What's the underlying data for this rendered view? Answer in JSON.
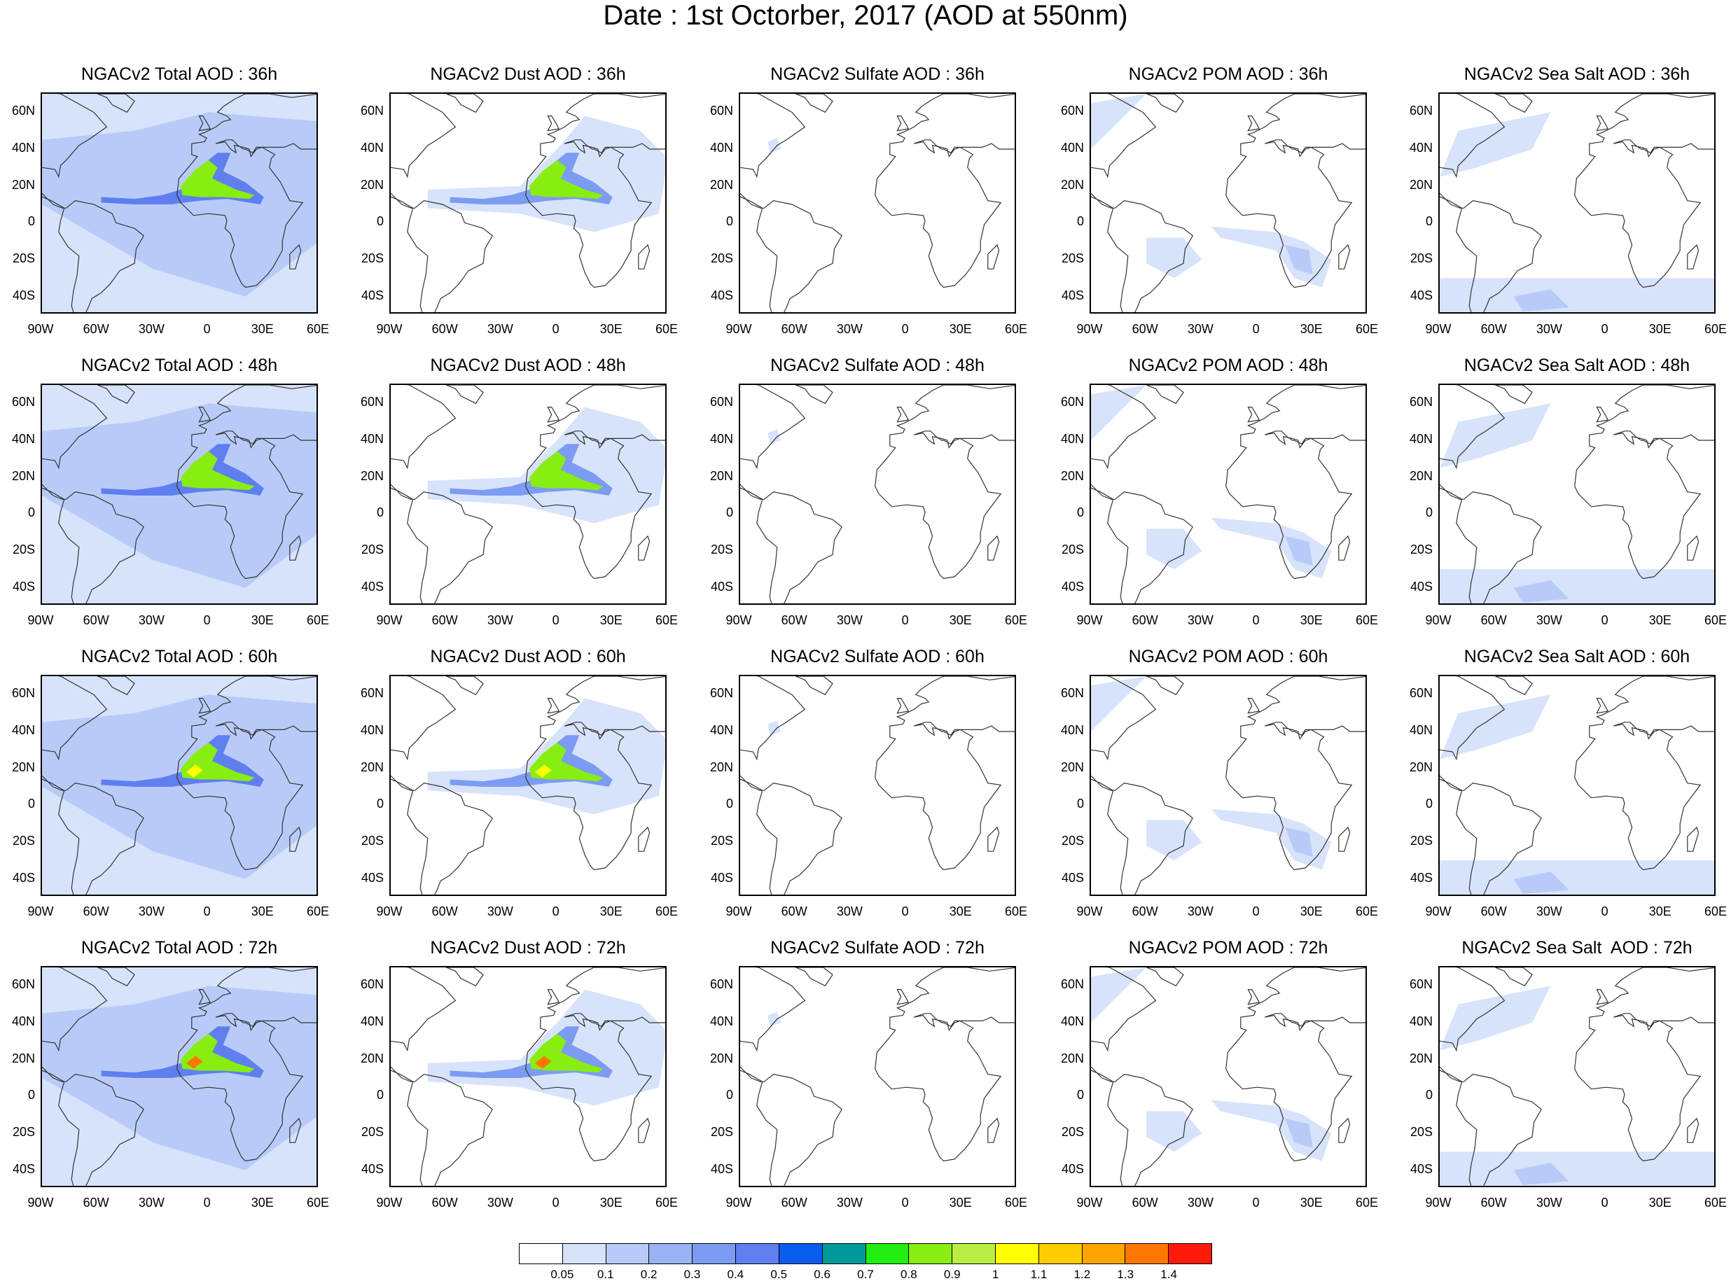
{
  "title": "Date : 1st Octorber, 2017 (AOD at 550nm)",
  "panels": [
    [
      "NGACv2 Total AOD : 36h",
      "NGACv2 Dust AOD : 36h",
      "NGACv2 Sulfate AOD : 36h",
      "NGACv2 POM AOD : 36h",
      "NGACv2 Sea Salt AOD : 36h"
    ],
    [
      "NGACv2 Total AOD : 48h",
      "NGACv2 Dust AOD : 48h",
      "NGACv2 Sulfate AOD : 48h",
      "NGACv2 POM AOD : 48h",
      "NGACv2 Sea Salt AOD : 48h"
    ],
    [
      "NGACv2 Total AOD : 60h",
      "NGACv2 Dust AOD : 60h",
      "NGACv2 Sulfate AOD : 60h",
      "NGACv2 POM AOD : 60h",
      "NGACv2 Sea Salt AOD : 60h"
    ],
    [
      "NGACv2 Total AOD : 72h",
      "NGACv2 Dust AOD : 72h",
      "NGACv2 Sulfate AOD : 72h",
      "NGACv2 POM AOD : 72h",
      "NGACv2 Sea Salt  AOD : 72h"
    ]
  ],
  "lat_labels": [
    "60N",
    "40N",
    "20N",
    "0",
    "20S",
    "40S"
  ],
  "lon_labels": [
    "90W",
    "60W",
    "30W",
    "0",
    "30E",
    "60E"
  ],
  "colorbar": {
    "colors": [
      "#ffffff",
      "#d7e3fb",
      "#b8cbf8",
      "#9ab3f5",
      "#7c9bf2",
      "#5f7ff0",
      "#0a5cee",
      "#009999",
      "#22ee11",
      "#88ee11",
      "#bbee44",
      "#ffff00",
      "#ffcc00",
      "#ffa500",
      "#ff7700",
      "#ff1a0a"
    ],
    "labels": [
      "0.05",
      "0.1",
      "0.2",
      "0.3",
      "0.4",
      "0.5",
      "0.6",
      "0.7",
      "0.8",
      "0.9",
      "1",
      "1.1",
      "1.2",
      "1.3",
      "1.4"
    ]
  }
}
